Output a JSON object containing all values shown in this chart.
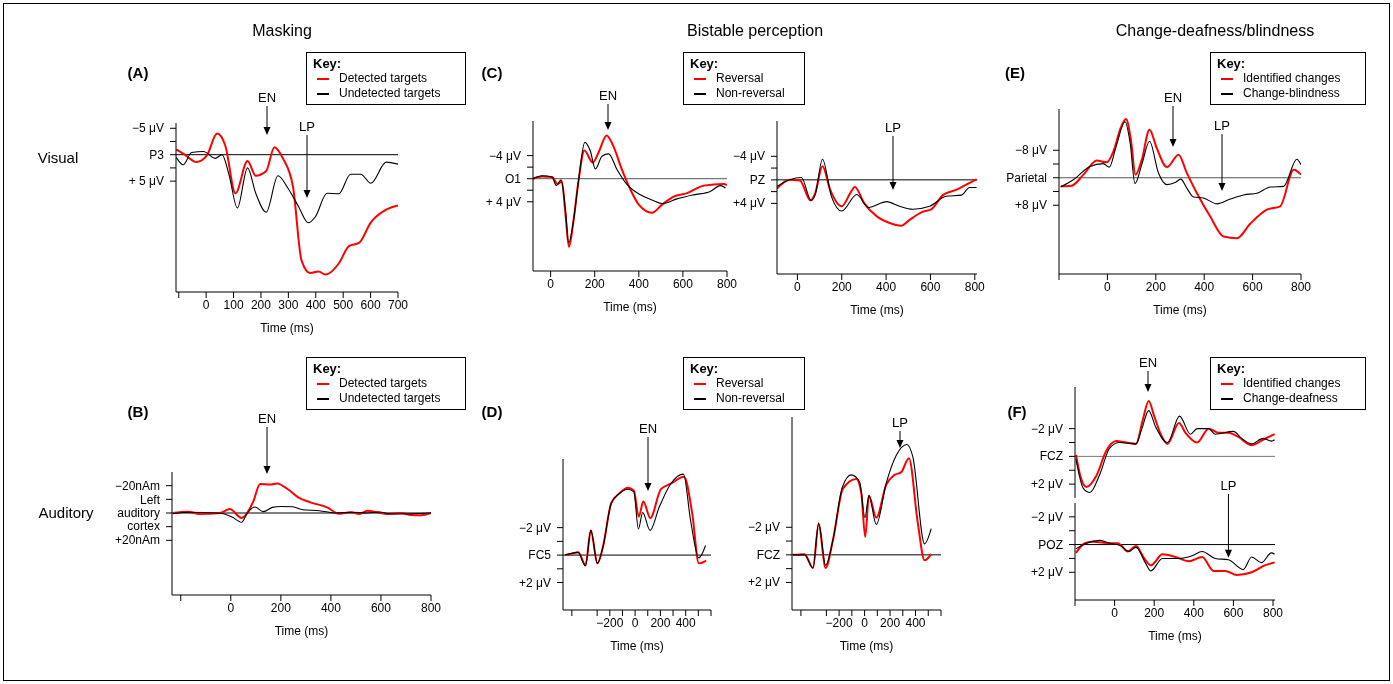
{
  "chart_data": [
    {
      "type": "line",
      "title": "Masking",
      "subtitle": "(A)",
      "xlabel": "Time (ms)",
      "legend": "top right",
      "legend_title": "Key:",
      "xlim": [
        -110,
        700
      ],
      "xticks": [
        {
          "value": -100,
          "label": null
        },
        0,
        100,
        200,
        300,
        400,
        500,
        600,
        700
      ],
      "ylim": [
        26,
        -6
      ],
      "yticks": [
        {
          "value": -5,
          "label": "−5 μV"
        },
        {
          "value": -2.5,
          "label": null
        },
        {
          "value": 0,
          "label": "P3"
        },
        {
          "value": 2.5,
          "label": null
        },
        {
          "value": 5,
          "label": "+ 5 μV"
        }
      ],
      "ref_lines": [
        {
          "axis": "y",
          "value": 0,
          "color": "#000000"
        }
      ],
      "annotations": [
        "Visual",
        "EN",
        "LP"
      ],
      "series": [
        {
          "name": "Detected targets",
          "color": "#ff0000",
          "x": [
            -109,
            -78,
            -35,
            2,
            40,
            70,
            107,
            151,
            181,
            219,
            249,
            280,
            317,
            348,
            379,
            410,
            435,
            484,
            521,
            558,
            601,
            657,
            700
          ],
          "values": [
            -1.0,
            0,
            1.4,
            0.2,
            -4.0,
            -1.7,
            7.3,
            1.2,
            4.0,
            3.1,
            -1.4,
            0.7,
            6.1,
            20,
            22.4,
            22.1,
            22.7,
            20.6,
            17.3,
            16.7,
            12.8,
            10.4,
            9.6
          ]
        },
        {
          "name": "Undetected targets",
          "color": "#000000",
          "x": [
            -109,
            -84,
            -53,
            -10,
            33,
            58,
            83,
            114,
            151,
            181,
            219,
            262,
            299,
            336,
            373,
            398,
            441,
            484,
            527,
            564,
            601,
            657,
            700
          ],
          "values": [
            0.5,
            1.9,
            -0.4,
            -0.6,
            0.7,
            0,
            3.7,
            10.1,
            2.5,
            7.3,
            10.9,
            4.0,
            6.4,
            9.7,
            12.9,
            11.8,
            7.3,
            7.4,
            3.7,
            3.7,
            5.4,
            1.4,
            1.8
          ]
        }
      ]
    },
    {
      "type": "line",
      "subtitle": "(B)",
      "xlabel": "Time (ms)",
      "legend": "top right",
      "legend_title": "Key:",
      "xlim": [
        -235,
        800
      ],
      "xticks": [
        {
          "value": -200,
          "label": null
        },
        0,
        200,
        400,
        600,
        800
      ],
      "ylim": [
        60,
        -30
      ],
      "yticks": [
        {
          "value": -20,
          "label": "−20nAm"
        },
        {
          "value": -10,
          "label": null
        },
        {
          "value": 0,
          "label": "Left auditory cortex"
        },
        {
          "value": 10,
          "label": null
        },
        {
          "value": 20,
          "label": "+20nAm"
        }
      ],
      "ref_lines": [
        {
          "axis": "y",
          "value": 0,
          "color": "#000000"
        }
      ],
      "annotations": [
        "Auditory",
        "EN"
      ],
      "series": [
        {
          "name": "Detected targets",
          "color": "#ff0000",
          "x": [
            -232,
            -172,
            -125,
            -44,
            -4,
            43,
            90,
            117,
            157,
            184,
            231,
            271,
            318,
            385,
            432,
            479,
            513,
            546,
            586,
            626,
            680,
            720,
            760,
            800
          ],
          "values": [
            0,
            -1,
            0.7,
            0,
            -2.9,
            3.6,
            -8.5,
            -21.3,
            -20.8,
            -21.6,
            -17,
            -11.2,
            -7.8,
            -4.1,
            0.5,
            -0.5,
            0.7,
            -1.7,
            -0.5,
            0.7,
            0,
            1.5,
            1.7,
            0
          ]
        },
        {
          "name": "Undetected targets",
          "color": "#000000",
          "x": [
            -232,
            -165,
            -44,
            5,
            43,
            66,
            96,
            130,
            166,
            200,
            247,
            287,
            354,
            421,
            488,
            546,
            593,
            640,
            720,
            800
          ],
          "values": [
            0.5,
            -0.5,
            0.2,
            2.9,
            6.8,
            0,
            -4.4,
            -1,
            -4.1,
            -4.8,
            -4.6,
            -2.4,
            -1.7,
            0,
            -0.5,
            0,
            -0.7,
            0.7,
            0.5,
            0
          ]
        }
      ]
    },
    {
      "type": "line",
      "title": "Bistable perception",
      "subtitle": "(C)",
      "xlabel": "Time (ms)",
      "legend": "top right",
      "legend_title": "Key:",
      "xlim": [
        -80,
        800
      ],
      "xticks": [
        0,
        200,
        400,
        600,
        800
      ],
      "ylim": [
        16,
        -10
      ],
      "yticks": [
        {
          "value": -4,
          "label": "−4 μV"
        },
        {
          "value": -2,
          "label": null
        },
        {
          "value": 0,
          "label": "O1"
        },
        {
          "value": 2,
          "label": null
        },
        {
          "value": 4,
          "label": "+ 4 μV"
        }
      ],
      "ref_lines": [
        {
          "axis": "y",
          "value": 0,
          "color": "#555555"
        }
      ],
      "annotations": [
        "EN"
      ],
      "series": [
        {
          "name": "Reversal",
          "color": "#ff0000",
          "x": [
            -80,
            -39,
            6,
            32,
            51,
            67,
            83,
            104,
            127,
            153,
            191,
            217,
            254,
            285,
            323,
            362,
            400,
            460,
            505,
            558,
            619,
            695,
            785,
            800
          ],
          "values": [
            0,
            -0.4,
            -0.3,
            0.9,
            0.5,
            6,
            11.8,
            7.2,
            0.2,
            -4.9,
            -2.8,
            -4.5,
            -7.5,
            -5.6,
            -1.6,
            1.9,
            4.5,
            5.9,
            4.5,
            3.1,
            2.5,
            1.2,
            0.9,
            1.1
          ]
        },
        {
          "name": "Non-reversal",
          "color": "#000000",
          "x": [
            -80,
            -39,
            6,
            26,
            47,
            67,
            82,
            104,
            127,
            155,
            180,
            203,
            233,
            263,
            301,
            346,
            407,
            460,
            505,
            573,
            649,
            724,
            770,
            793
          ],
          "values": [
            0,
            -0.5,
            -0.3,
            1.2,
            0.2,
            5.4,
            11.1,
            7.2,
            0.2,
            -6.3,
            -4.8,
            -1.7,
            -3.9,
            -4.3,
            -1.6,
            1,
            2.8,
            3.7,
            4.3,
            3.5,
            2.8,
            2.2,
            1.2,
            1.6
          ]
        }
      ]
    },
    {
      "type": "line",
      "xlabel": "Time (ms)",
      "xlim": [
        -92,
        810
      ],
      "xticks": [
        0,
        200,
        400,
        600,
        800
      ],
      "ylim": [
        16,
        -10
      ],
      "yticks": [
        {
          "value": -4,
          "label": "−4 μV"
        },
        {
          "value": -2,
          "label": null
        },
        {
          "value": 0,
          "label": "PZ"
        },
        {
          "value": 2,
          "label": null
        },
        {
          "value": 4,
          "label": "+4 μV"
        }
      ],
      "ref_lines": [
        {
          "axis": "y",
          "value": 0,
          "color": "#000000"
        }
      ],
      "annotations": [
        "LP"
      ],
      "series": [
        {
          "color": "#ff0000",
          "x": [
            -92,
            -35,
            11,
            59,
            80,
            113,
            148,
            200,
            238,
            259,
            302,
            361,
            413,
            469,
            506,
            566,
            604,
            656,
            716,
            777,
            808
          ],
          "values": [
            1.5,
            0,
            0.1,
            3.5,
            2.3,
            -2.3,
            1.7,
            4.5,
            2.3,
            1.2,
            4,
            6.3,
            7.3,
            7.8,
            6.8,
            5.4,
            5,
            2.6,
            1.7,
            0.5,
            -0.1
          ]
        },
        {
          "color": "#000000",
          "x": [
            -92,
            -35,
            18,
            62,
            80,
            113,
            154,
            200,
            268,
            320,
            403,
            461,
            521,
            596,
            671,
            739,
            777,
            808
          ],
          "values": [
            1.1,
            0,
            -0.4,
            3.5,
            2.6,
            -3.5,
            2.9,
            5.3,
            2.5,
            4.7,
            3.7,
            4.5,
            5,
            4.5,
            2.8,
            2.6,
            1.3,
            1.3
          ]
        }
      ]
    },
    {
      "type": "line",
      "subtitle": "(D)",
      "xlabel": "Time (ms)",
      "legend": "top right",
      "legend_title": "Key:",
      "xlim": [
        -570,
        600
      ],
      "xticks": [
        {
          "value": -500,
          "label": null
        },
        {
          "value": -300,
          "label": null
        },
        {
          "value": -200,
          "label": "−200"
        },
        {
          "value": -100,
          "label": null
        },
        0,
        {
          "value": 100,
          "label": null
        },
        200,
        {
          "value": 300,
          "label": null
        },
        400,
        {
          "value": 500,
          "label": null
        },
        {
          "value": 600,
          "label": null
        }
      ],
      "ylim": [
        4,
        -7
      ],
      "yticks": [
        {
          "value": -2,
          "label": "−2 μV"
        },
        {
          "value": -1,
          "label": null
        },
        {
          "value": 0,
          "label": "FC5"
        },
        {
          "value": 1,
          "label": null
        },
        {
          "value": 2,
          "label": "+2 μV"
        }
      ],
      "ref_lines": [
        {
          "axis": "y",
          "value": 0,
          "color": "#000000"
        }
      ],
      "annotations": [
        "EN"
      ],
      "series": [
        {
          "name": "Reversal",
          "color": "#ff0000",
          "x": [
            -554,
            -502,
            -450,
            -392,
            -350,
            -298,
            -254,
            -188,
            -123,
            -58,
            -10,
            29,
            65,
            120,
            204,
            282,
            387,
            452,
            504,
            562
          ],
          "values": [
            0,
            -0.1,
            -0.2,
            0.7,
            -1.8,
            0.6,
            -0.6,
            -3.8,
            -4.5,
            -4.9,
            -4.7,
            -2.8,
            -3.9,
            -2.7,
            -4.8,
            -5.2,
            -5.7,
            -3,
            0.6,
            0.4
          ]
        },
        {
          "name": "Non-reversal",
          "color": "#000000",
          "x": [
            -554,
            -450,
            -392,
            -350,
            -298,
            -254,
            -188,
            -123,
            -58,
            -10,
            26,
            60,
            118,
            191,
            282,
            382,
            439,
            504,
            557
          ],
          "values": [
            0,
            -0.2,
            0.8,
            -1.8,
            0.6,
            -0.6,
            -3.8,
            -4.5,
            -4.8,
            -4.6,
            -1.9,
            -3.1,
            -1.8,
            -3.5,
            -5.2,
            -5.9,
            -2.5,
            0.2,
            -0.7
          ]
        }
      ]
    },
    {
      "type": "line",
      "xlabel": "Time (ms)",
      "xlim": [
        -570,
        600
      ],
      "xticks": [
        {
          "value": -500,
          "label": null
        },
        {
          "value": -300,
          "label": null
        },
        {
          "value": -200,
          "label": "−200"
        },
        {
          "value": -100,
          "label": null
        },
        0,
        {
          "value": 100,
          "label": null
        },
        200,
        {
          "value": 300,
          "label": null
        },
        400,
        {
          "value": 500,
          "label": null
        },
        {
          "value": 600,
          "label": null
        }
      ],
      "ylim": [
        4,
        -10
      ],
      "yticks": [
        {
          "value": -2,
          "label": "−2 μV"
        },
        {
          "value": -1,
          "label": null
        },
        {
          "value": 0,
          "label": "FCZ"
        },
        {
          "value": 1,
          "label": null
        },
        {
          "value": 2,
          "label": "+2 μV"
        }
      ],
      "ref_lines": [
        {
          "axis": "y",
          "value": 0,
          "color": "#000000"
        }
      ],
      "annotations": [
        "LP"
      ],
      "series": [
        {
          "color": "#ff0000",
          "x": [
            -562,
            -471,
            -405,
            -361,
            -306,
            -248,
            -170,
            -65,
            -26,
            5,
            34,
            92,
            170,
            235,
            288,
            348,
            418,
            471,
            523
          ],
          "values": [
            0,
            -0.05,
            0.95,
            -2.2,
            0.95,
            -1.1,
            -4.8,
            -5.5,
            -4.5,
            -1.3,
            -4.3,
            -2.7,
            -5.1,
            -5.8,
            -6,
            -7,
            -2.3,
            0.4,
            -0.05
          ]
        },
        {
          "color": "#000000",
          "x": [
            -562,
            -471,
            -405,
            -361,
            -306,
            -248,
            -175,
            -105,
            -39,
            3,
            34,
            92,
            170,
            248,
            332,
            379,
            471,
            523
          ],
          "values": [
            0,
            0,
            0.95,
            -2.3,
            0.75,
            -1.1,
            -4.9,
            -5.8,
            -5.3,
            -2.7,
            -4.3,
            -2.2,
            -5.2,
            -7.2,
            -8,
            -7.1,
            -0.8,
            -1.9
          ]
        }
      ]
    },
    {
      "type": "line",
      "title": "Change-deafness/blindness",
      "subtitle": "(E)",
      "xlabel": "Time (ms)",
      "legend": "top right",
      "legend_title": "Key:",
      "xlim": [
        -200,
        800
      ],
      "xticks": [
        {
          "value": -200,
          "label": null
        },
        0,
        200,
        400,
        600,
        800
      ],
      "ylim": [
        28,
        -20
      ],
      "yticks": [
        {
          "value": -8,
          "label": "−8 μV"
        },
        {
          "value": -4,
          "label": null
        },
        {
          "value": 0,
          "label": "Parietal"
        },
        {
          "value": 4,
          "label": null
        },
        {
          "value": 8,
          "label": "+8 μV"
        }
      ],
      "ref_lines": [
        {
          "axis": "y",
          "value": 0,
          "color": "#555555"
        }
      ],
      "annotations": [
        "EN",
        "LP"
      ],
      "series": [
        {
          "name": "Identified changes",
          "color": "#ff0000",
          "x": [
            -193,
            -148,
            -99,
            -44,
            -3,
            25,
            55,
            77,
            97,
            116,
            142,
            174,
            204,
            246,
            294,
            328,
            370,
            425,
            480,
            535,
            590,
            659,
            714,
            770,
            800
          ],
          "values": [
            2.5,
            2.3,
            -0.9,
            -5,
            -4.5,
            -7.7,
            -14.5,
            -17.1,
            -11.1,
            -0.9,
            -5.2,
            -14,
            -8.6,
            -3.1,
            -6.7,
            -1.4,
            4.5,
            11.3,
            17.1,
            17.6,
            13.4,
            9.3,
            8.3,
            -2.3,
            -0.9
          ]
        },
        {
          "name": "Change-blindness",
          "color": "#000000",
          "x": [
            -193,
            -141,
            -72,
            -17,
            8,
            36,
            73,
            94,
            114,
            142,
            174,
            211,
            246,
            280,
            303,
            328,
            356,
            397,
            453,
            508,
            563,
            618,
            673,
            728,
            783,
            800
          ],
          "values": [
            2.7,
            0.6,
            -3.3,
            -4.1,
            -3.1,
            -9.1,
            -16.3,
            -10.1,
            1.7,
            -3.8,
            -10.6,
            -1.4,
            2,
            1.4,
            0.4,
            3,
            5.6,
            5.9,
            7.6,
            6.2,
            5,
            4.5,
            2.7,
            2.5,
            -5.4,
            -3.8
          ]
        }
      ]
    },
    {
      "type": "line",
      "subtitle": "(F)",
      "legend": "top right",
      "legend_title": "Key:",
      "tick_labels": "y",
      "xlim": [
        -200,
        810
      ],
      "xticks": [
        {
          "value": -200,
          "label": null
        },
        0,
        200,
        400,
        600,
        800
      ],
      "ylim": [
        3,
        -5
      ],
      "yticks": [
        {
          "value": -2,
          "label": "−2 μV"
        },
        {
          "value": -1,
          "label": null
        },
        {
          "value": 0,
          "label": "FCZ"
        },
        {
          "value": 1,
          "label": null
        },
        {
          "value": 2,
          "label": "+2 μV"
        }
      ],
      "ref_lines": [
        {
          "axis": "y",
          "value": 0,
          "color": "#777777"
        }
      ],
      "annotations": [
        "EN"
      ],
      "series": [
        {
          "name": "Identified changes",
          "color": "#ff0000",
          "x": [
            -195,
            -175,
            -142,
            -92,
            -42,
            8,
            58,
            108,
            142,
            172,
            200,
            233,
            267,
            325,
            358,
            417,
            475,
            525,
            575,
            625,
            692,
            750,
            808
          ],
          "values": [
            -0.1,
            1.3,
            2.2,
            1.4,
            -0.4,
            -1.1,
            -1,
            -0.9,
            -2.6,
            -4,
            -2.9,
            -1.6,
            -0.9,
            -2.4,
            -1.7,
            -1,
            -2,
            -1.7,
            -1.7,
            -1.4,
            -0.8,
            -1.2,
            -1.6
          ]
        },
        {
          "name": "Change-deafness",
          "color": "#000000",
          "x": [
            -195,
            -158,
            -125,
            -75,
            -25,
            25,
            108,
            138,
            172,
            208,
            267,
            328,
            383,
            417,
            475,
            508,
            600,
            642,
            692,
            750,
            792,
            808
          ],
          "values": [
            0.2,
            2.3,
            2.6,
            1.3,
            -0.6,
            -1,
            -0.9,
            -2,
            -3.3,
            -2.1,
            -1,
            -2.9,
            -1.6,
            -2,
            -2,
            -1.6,
            -1.8,
            -1.3,
            -0.9,
            -1.3,
            -1.1,
            -1.2
          ]
        }
      ]
    },
    {
      "type": "line",
      "xlabel": "Time (ms)",
      "xlim": [
        -200,
        810
      ],
      "xticks": [
        {
          "value": -200,
          "label": null
        },
        0,
        200,
        400,
        600,
        800
      ],
      "ylim": [
        4,
        -3
      ],
      "yticks": [
        {
          "value": -2,
          "label": "−2 μV"
        },
        {
          "value": -1,
          "label": null
        },
        {
          "value": 0,
          "label": "POZ"
        },
        {
          "value": 1,
          "label": null
        },
        {
          "value": 2,
          "label": "+2 μV"
        }
      ],
      "ref_lines": [
        {
          "axis": "y",
          "value": 0,
          "color": "#000000"
        }
      ],
      "annotations": [
        {
          "text": "LP",
          "x": 575,
          "y": 1.1
        }
      ],
      "series": [
        {
          "color": "#ff0000",
          "x": [
            -195,
            -150,
            -108,
            -25,
            17,
            67,
            108,
            150,
            183,
            242,
            308,
            375,
            442,
            500,
            558,
            617,
            692,
            758,
            808
          ],
          "values": [
            0.6,
            -0.1,
            -0.2,
            -0.1,
            -0.1,
            0.5,
            0.1,
            1,
            1.5,
            0.7,
            0.9,
            1.2,
            0.9,
            1.9,
            1.9,
            2.2,
            2,
            1.5,
            1.3
          ]
        },
        {
          "color": "#000000",
          "x": [
            -195,
            -142,
            -75,
            -25,
            33,
            72,
            108,
            155,
            183,
            242,
            325,
            392,
            442,
            508,
            575,
            650,
            692,
            742,
            792,
            808
          ],
          "values": [
            0.3,
            -0.1,
            -0.3,
            -0.1,
            0.1,
            0.5,
            0.2,
            1.3,
            1.9,
            1,
            1,
            0.8,
            0.5,
            1,
            1.1,
            1.8,
            0.9,
            1.3,
            0.6,
            0.7
          ]
        }
      ]
    }
  ]
}
